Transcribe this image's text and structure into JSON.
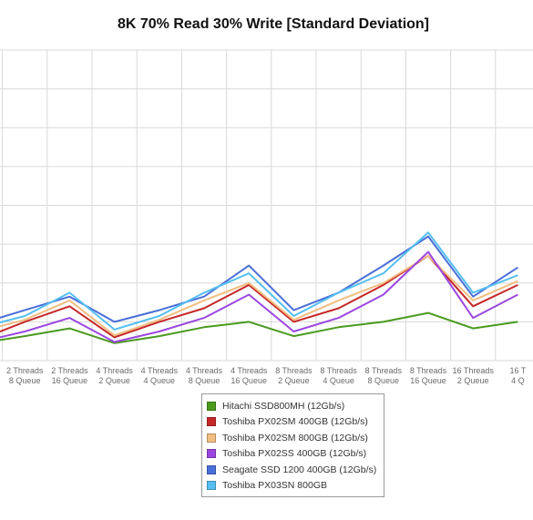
{
  "chart_data": {
    "type": "line",
    "title": "8K 70% Read 30% Write [Standard Deviation]",
    "xlabel": "",
    "ylabel": "",
    "categories": [
      [
        "Threads",
        "Queue"
      ],
      [
        "2 Threads",
        "8 Queue"
      ],
      [
        "2 Threads",
        "16 Queue"
      ],
      [
        "4 Threads",
        "2 Queue"
      ],
      [
        "4 Threads",
        "4 Queue"
      ],
      [
        "4 Threads",
        "8 Queue"
      ],
      [
        "4 Threads",
        "16 Queue"
      ],
      [
        "8 Threads",
        "2 Queue"
      ],
      [
        "8 Threads",
        "4 Queue"
      ],
      [
        "8 Threads",
        "8 Queue"
      ],
      [
        "8 Threads",
        "16 Queue"
      ],
      [
        "16 Threads",
        "2 Queue"
      ],
      [
        "16 T",
        "4 Q"
      ]
    ],
    "ylim": [
      0,
      8
    ],
    "grid": true,
    "legend_position": "bottom",
    "series": [
      {
        "name": "Hitachi SSD800MH (12Gb/s)",
        "color": "#4a9a1e",
        "values": [
          0.45,
          0.63,
          0.83,
          0.45,
          0.63,
          0.86,
          1.0,
          0.63,
          0.86,
          1.0,
          1.23,
          0.83,
          1.0
        ]
      },
      {
        "name": "Toshiba PX02SM 400GB (12Gb/s)",
        "color": "#c62828",
        "values": [
          0.55,
          1.0,
          1.4,
          0.6,
          1.0,
          1.35,
          1.95,
          1.0,
          1.35,
          1.95,
          2.7,
          1.4,
          1.95
        ]
      },
      {
        "name": "Toshiba PX02SM 800GB (12Gb/s)",
        "color": "#f2be82",
        "values": [
          0.75,
          1.05,
          1.55,
          0.65,
          1.05,
          1.55,
          2.0,
          1.05,
          1.55,
          2.0,
          2.7,
          1.55,
          2.05
        ]
      },
      {
        "name": "Toshiba PX02SS 400GB (12Gb/s)",
        "color": "#9b47e0",
        "values": [
          0.48,
          0.75,
          1.1,
          0.48,
          0.75,
          1.1,
          1.7,
          0.75,
          1.1,
          1.7,
          2.8,
          1.1,
          1.7
        ]
      },
      {
        "name": "Seagate SSD 1200 400GB (12Gb/s)",
        "color": "#4a6fd8",
        "values": [
          0.95,
          1.3,
          1.65,
          1.0,
          1.3,
          1.65,
          2.45,
          1.3,
          1.75,
          2.45,
          3.2,
          1.65,
          2.4
        ]
      },
      {
        "name": "Toshiba PX03SN 800GB",
        "color": "#56bff0",
        "values": [
          0.85,
          1.15,
          1.75,
          0.8,
          1.15,
          1.75,
          2.25,
          1.15,
          1.75,
          2.25,
          3.3,
          1.75,
          2.2
        ]
      }
    ]
  }
}
